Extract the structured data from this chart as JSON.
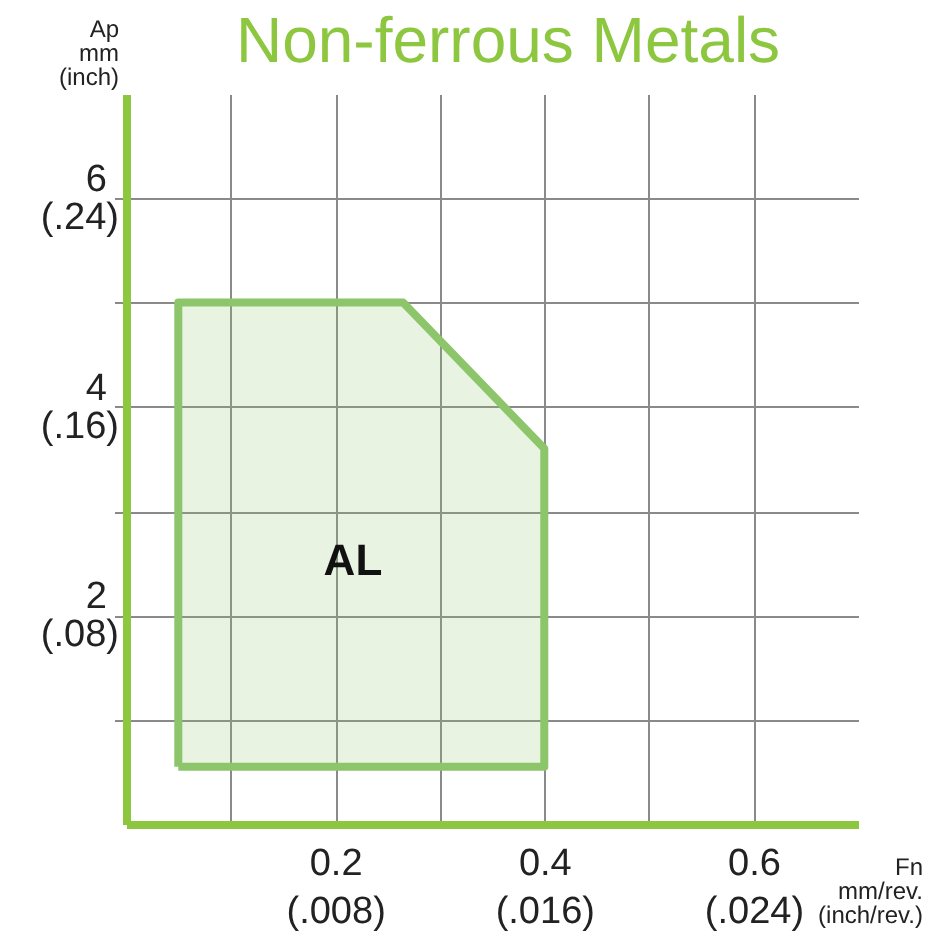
{
  "chart_data": {
    "type": "area",
    "title": "Non-ferrous Metals",
    "xlabel": "Fn\nmm/rev.\n(inch/rev.)",
    "ylabel": "Ap\nmm\n(inch)",
    "series": [
      {
        "color": "#8cc56a",
        "x": [
          0.05,
          0.05,
          0.265,
          0.4,
          0.4,
          0.05
        ],
        "values": [
          0.55,
          5,
          5,
          3.6,
          0.55,
          0.55
        ]
      }
    ],
    "xlim": [
      0,
      0.7
    ],
    "xticks": [
      {
        "value": 0.1,
        "label": null
      },
      0.2,
      {
        "value": 0.3,
        "label": null
      },
      0.4,
      {
        "value": 0.5,
        "label": null
      },
      0.6
    ],
    "x2lim": [
      0,
      0.028
    ],
    "x2ticks": [
      {
        "value": 0.008,
        "label": "(.008)"
      },
      {
        "value": 0.016,
        "label": "(.016)"
      },
      {
        "value": 0.024,
        "label": "(.024)"
      }
    ],
    "ylim": [
      0,
      7
    ],
    "yticks": [
      {
        "value": 1,
        "label": null
      },
      2,
      {
        "value": 3,
        "label": null
      },
      4,
      {
        "value": 5,
        "label": null
      },
      6
    ],
    "y2lim": [
      0,
      0.28
    ],
    "y2ticks": [
      {
        "value": 0.08,
        "label": "(.08)"
      },
      {
        "value": 0.16,
        "label": "(.16)"
      },
      {
        "value": 0.24,
        "label": "(.24)"
      }
    ],
    "grid": true,
    "annotations": [
      "AL"
    ]
  }
}
